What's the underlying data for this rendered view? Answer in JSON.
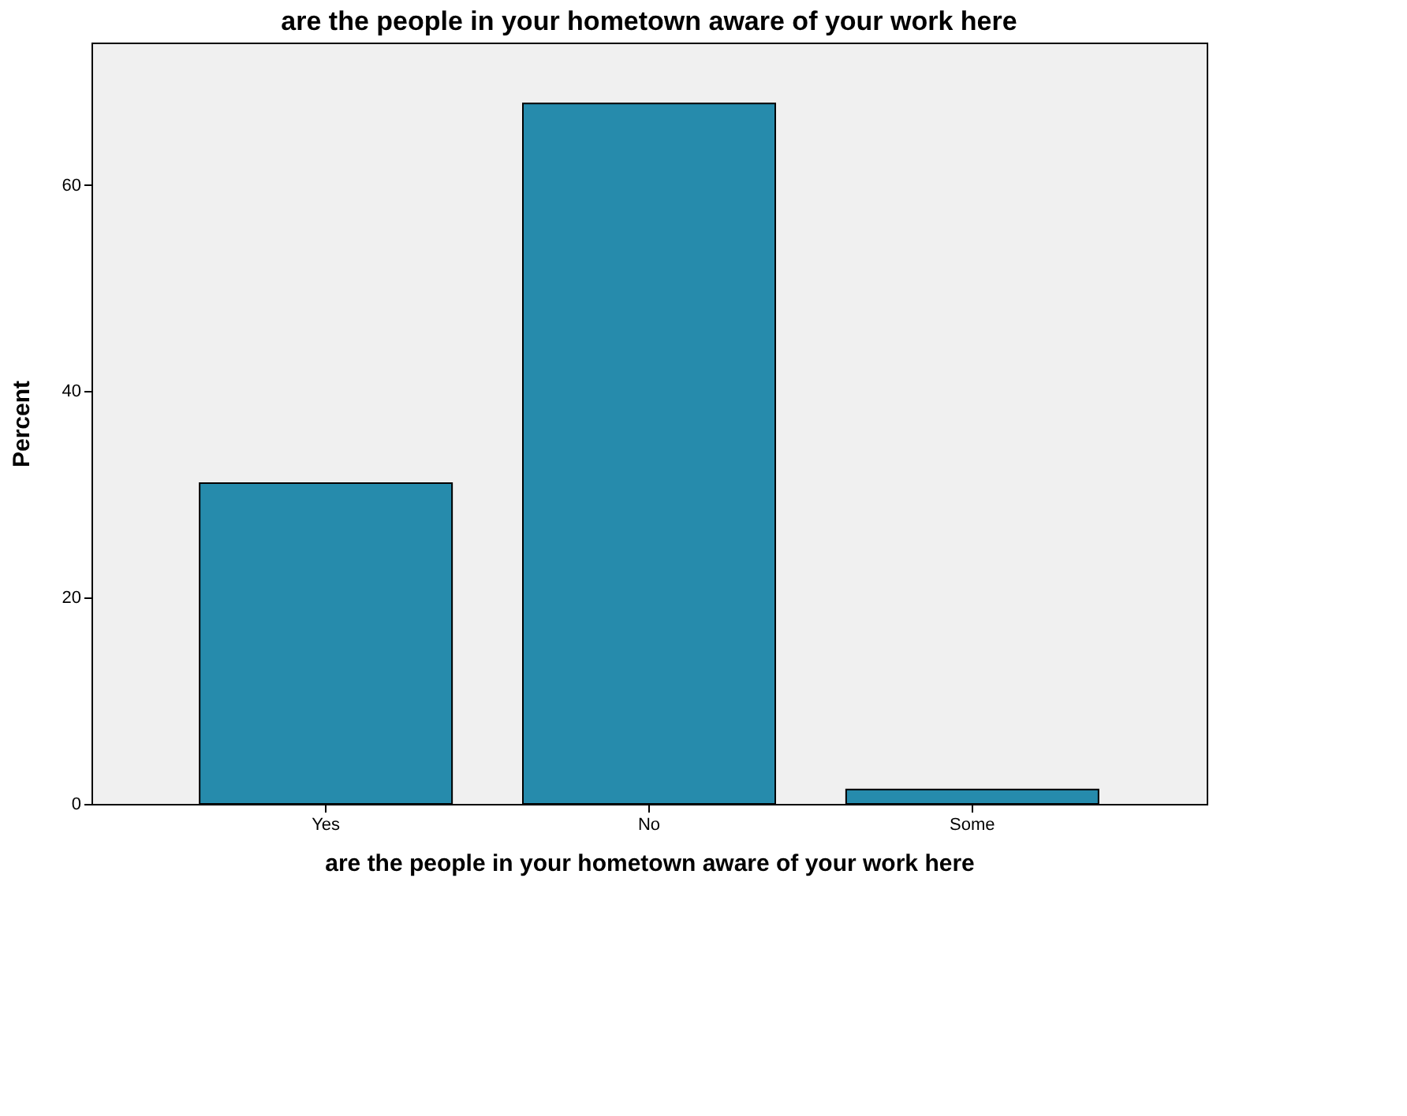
{
  "chart_data": {
    "type": "bar",
    "title": "are the people in your hometown aware of your work here",
    "xlabel": "are the people in your hometown aware of your work here",
    "ylabel": "Percent",
    "categories": [
      "Yes",
      "No",
      "Some"
    ],
    "values": [
      31.1,
      67.9,
      1.4
    ],
    "color": "#268bac",
    "ylim": [
      0,
      73.8
    ],
    "yticks": [
      0,
      20,
      40,
      60
    ],
    "grid": false
  }
}
